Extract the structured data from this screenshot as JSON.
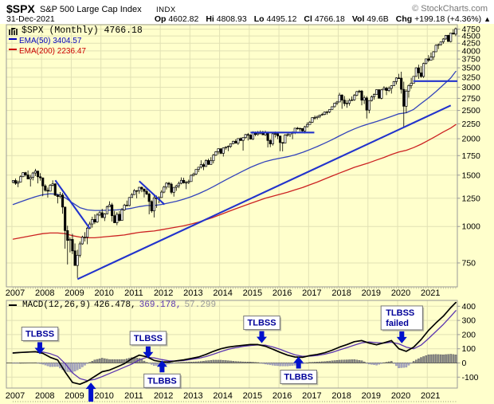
{
  "header": {
    "symbol": "$SPX",
    "name": "S&P 500 Large Cap Index",
    "exchange": "INDX",
    "copyright": "© StockCharts.com"
  },
  "quote": {
    "date": "31-Dec-2021",
    "op_label": "Op",
    "op": "4602.82",
    "hi_label": "Hi",
    "hi": "4808.93",
    "lo_label": "Lo",
    "lo": "4495.12",
    "cl_label": "Cl",
    "cl": "4766.18",
    "vol_label": "Vol",
    "vol": "49.6B",
    "chg_label": "Chg",
    "chg": "+199.18 (+4.36%)",
    "chg_dir": "▲"
  },
  "legend": {
    "main": "$SPX (Monthly) 4766.18",
    "ema50": "EMA(50) 3404.57",
    "ema200": "EMA(200) 2236.47"
  },
  "macd_legend": {
    "label": "MACD(12,26,9)",
    "value_macd": "426.478,",
    "value_signal": "369.178,",
    "value_hist": "57.299"
  },
  "colors": {
    "background": "#FFFFCC",
    "grid": "#E1E1B4",
    "frame": "#999999",
    "candle": "#000000",
    "candle_up_fill": "#FFFFFF",
    "ema50": "#3344BB",
    "ema200": "#CC2222",
    "ema50_text": "#0000BB",
    "ema200_text": "#CC0000",
    "trendline": "#2233CC",
    "macd_line": "#000000",
    "signal_line": "#5B35B0",
    "hist_pos": "#8A8A8A",
    "hist_neg": "#A9A9C2",
    "hist_pos_edge": "#555555",
    "hist_neg_edge": "#8585A8",
    "annotation_text": "#000099",
    "arrow": "#0011CC",
    "gray_value": "#999999"
  },
  "chart_data": {
    "price_panel": {
      "type": "candlestick",
      "y_scale": "log",
      "y_ticks": [
        750,
        1000,
        1250,
        1500,
        1750,
        2000,
        2250,
        2500,
        2750,
        3000,
        3250,
        3500,
        3750,
        4000,
        4250,
        4500,
        4750
      ],
      "x_years": [
        2007,
        2008,
        2009,
        2010,
        2011,
        2012,
        2013,
        2014,
        2015,
        2016,
        2017,
        2018,
        2019,
        2020,
        2021
      ],
      "x_start_year": 2007,
      "months": 180,
      "first_open": 1418,
      "monthly_hlc": [
        [
          1441,
          1404,
          1438
        ],
        [
          1461,
          1389,
          1406
        ],
        [
          1438,
          1364,
          1420
        ],
        [
          1498,
          1416,
          1482
        ],
        [
          1535,
          1476,
          1530
        ],
        [
          1540,
          1484,
          1503
        ],
        [
          1556,
          1455,
          1455
        ],
        [
          1504,
          1371,
          1474
        ],
        [
          1539,
          1439,
          1526
        ],
        [
          1576,
          1489,
          1549
        ],
        [
          1552,
          1406,
          1481
        ],
        [
          1524,
          1436,
          1468
        ],
        [
          1472,
          1270,
          1378
        ],
        [
          1396,
          1316,
          1330
        ],
        [
          1360,
          1257,
          1322
        ],
        [
          1398,
          1324,
          1385
        ],
        [
          1440,
          1373,
          1400
        ],
        [
          1406,
          1272,
          1280
        ],
        [
          1292,
          1200,
          1267
        ],
        [
          1313,
          1247,
          1282
        ],
        [
          1303,
          1106,
          1166
        ],
        [
          1167,
          839,
          968
        ],
        [
          1006,
          741,
          896
        ],
        [
          918,
          815,
          903
        ],
        [
          944,
          804,
          825
        ],
        [
          875,
          735,
          735
        ],
        [
          832,
          666,
          797
        ],
        [
          888,
          783,
          872
        ],
        [
          930,
          866,
          919
        ],
        [
          956,
          888,
          919
        ],
        [
          996,
          869,
          987
        ],
        [
          1039,
          978,
          1020
        ],
        [
          1080,
          991,
          1057
        ],
        [
          1101,
          1019,
          1036
        ],
        [
          1113,
          1029,
          1095
        ],
        [
          1130,
          1085,
          1115
        ],
        [
          1150,
          1071,
          1073
        ],
        [
          1112,
          1044,
          1104
        ],
        [
          1180,
          1116,
          1169
        ],
        [
          1220,
          1170,
          1186
        ],
        [
          1205,
          1040,
          1089
        ],
        [
          1131,
          1028,
          1030
        ],
        [
          1120,
          1010,
          1101
        ],
        [
          1129,
          1039,
          1049
        ],
        [
          1157,
          1049,
          1141
        ],
        [
          1196,
          1131,
          1183
        ],
        [
          1227,
          1173,
          1180
        ],
        [
          1262,
          1173,
          1257
        ],
        [
          1302,
          1257,
          1286
        ],
        [
          1344,
          1289,
          1327
        ],
        [
          1332,
          1249,
          1325
        ],
        [
          1364,
          1294,
          1363
        ],
        [
          1370,
          1311,
          1345
        ],
        [
          1345,
          1258,
          1320
        ],
        [
          1356,
          1282,
          1292
        ],
        [
          1307,
          1101,
          1218
        ],
        [
          1230,
          1114,
          1131
        ],
        [
          1292,
          1074,
          1253
        ],
        [
          1277,
          1158,
          1246
        ],
        [
          1269,
          1202,
          1257
        ],
        [
          1333,
          1258,
          1312
        ],
        [
          1378,
          1300,
          1365
        ],
        [
          1419,
          1340,
          1408
        ],
        [
          1422,
          1357,
          1397
        ],
        [
          1415,
          1291,
          1310
        ],
        [
          1363,
          1266,
          1362
        ],
        [
          1391,
          1325,
          1379
        ],
        [
          1426,
          1354,
          1406
        ],
        [
          1474,
          1396,
          1440
        ],
        [
          1470,
          1403,
          1412
        ],
        [
          1434,
          1343,
          1416
        ],
        [
          1448,
          1398,
          1426
        ],
        [
          1509,
          1426,
          1498
        ],
        [
          1530,
          1485,
          1514
        ],
        [
          1570,
          1501,
          1569
        ],
        [
          1597,
          1536,
          1597
        ],
        [
          1687,
          1581,
          1630
        ],
        [
          1654,
          1560,
          1606
        ],
        [
          1698,
          1604,
          1685
        ],
        [
          1709,
          1627,
          1632
        ],
        [
          1729,
          1633,
          1681
        ],
        [
          1775,
          1646,
          1756
        ],
        [
          1813,
          1746,
          1805
        ],
        [
          1849,
          1767,
          1848
        ],
        [
          1851,
          1770,
          1782
        ],
        [
          1867,
          1737,
          1859
        ],
        [
          1883,
          1834,
          1872
        ],
        [
          1897,
          1814,
          1883
        ],
        [
          1924,
          1859,
          1923
        ],
        [
          1968,
          1915,
          1960
        ],
        [
          1991,
          1930,
          1930
        ],
        [
          2005,
          1904,
          2003
        ],
        [
          2019,
          1964,
          1972
        ],
        [
          2018,
          1820,
          2018
        ],
        [
          2076,
          2001,
          2067
        ],
        [
          2093,
          1972,
          2058
        ],
        [
          2072,
          1988,
          1994
        ],
        [
          2120,
          1980,
          2104
        ],
        [
          2117,
          2040,
          2067
        ],
        [
          2126,
          2048,
          2085
        ],
        [
          2135,
          2067,
          2107
        ],
        [
          2130,
          2056,
          2063
        ],
        [
          2133,
          2044,
          2103
        ],
        [
          2113,
          1867,
          1972
        ],
        [
          1993,
          1871,
          1920
        ],
        [
          2095,
          1894,
          2079
        ],
        [
          2116,
          2019,
          2080
        ],
        [
          2104,
          1993,
          2043
        ],
        [
          2038,
          1812,
          1940
        ],
        [
          1947,
          1810,
          1932
        ],
        [
          2073,
          1932,
          2059
        ],
        [
          2111,
          2033,
          2065
        ],
        [
          2103,
          2026,
          2096
        ],
        [
          2121,
          1992,
          2098
        ],
        [
          2177,
          2074,
          2173
        ],
        [
          2194,
          2148,
          2170
        ],
        [
          2180,
          2119,
          2168
        ],
        [
          2170,
          2114,
          2126
        ],
        [
          2214,
          2084,
          2198
        ],
        [
          2278,
          2187,
          2238
        ],
        [
          2301,
          2239,
          2278
        ],
        [
          2368,
          2267,
          2363
        ],
        [
          2401,
          2322,
          2362
        ],
        [
          2399,
          2329,
          2384
        ],
        [
          2418,
          2353,
          2411
        ],
        [
          2454,
          2405,
          2423
        ],
        [
          2477,
          2408,
          2470
        ],
        [
          2491,
          2418,
          2471
        ],
        [
          2519,
          2447,
          2519
        ],
        [
          2582,
          2520,
          2575
        ],
        [
          2657,
          2558,
          2647
        ],
        [
          2695,
          2606,
          2673
        ],
        [
          2873,
          2674,
          2823
        ],
        [
          2840,
          2533,
          2713
        ],
        [
          2802,
          2586,
          2640
        ],
        [
          2717,
          2554,
          2648
        ],
        [
          2742,
          2595,
          2705
        ],
        [
          2791,
          2692,
          2718
        ],
        [
          2848,
          2699,
          2816
        ],
        [
          2916,
          2796,
          2901
        ],
        [
          2941,
          2865,
          2913
        ],
        [
          2940,
          2603,
          2711
        ],
        [
          2815,
          2631,
          2760
        ],
        [
          2800,
          2346,
          2506
        ],
        [
          2708,
          2444,
          2704
        ],
        [
          2813,
          2682,
          2784
        ],
        [
          2860,
          2722,
          2834
        ],
        [
          2949,
          2848,
          2945
        ],
        [
          2954,
          2750,
          2752
        ],
        [
          2964,
          2729,
          2941
        ],
        [
          3028,
          2952,
          2980
        ],
        [
          3014,
          2822,
          2926
        ],
        [
          3022,
          2891,
          2976
        ],
        [
          3050,
          2856,
          3037
        ],
        [
          3154,
          3037,
          3140
        ],
        [
          3248,
          3070,
          3230
        ],
        [
          3338,
          3214,
          3225
        ],
        [
          3394,
          2856,
          2954
        ],
        [
          3137,
          2192,
          2584
        ],
        [
          2955,
          2448,
          2912
        ],
        [
          3068,
          2766,
          3044
        ],
        [
          3233,
          2966,
          3100
        ],
        [
          3280,
          3101,
          3271
        ],
        [
          3514,
          3271,
          3500
        ],
        [
          3588,
          3209,
          3363
        ],
        [
          3550,
          3234,
          3269
        ],
        [
          3646,
          3233,
          3621
        ],
        [
          3760,
          3594,
          3756
        ],
        [
          3870,
          3663,
          3714
        ],
        [
          3950,
          3714,
          3811
        ],
        [
          3994,
          3723,
          3972
        ],
        [
          4218,
          3992,
          4181
        ],
        [
          4238,
          4057,
          4204
        ],
        [
          4302,
          4167,
          4297
        ],
        [
          4429,
          4233,
          4395
        ],
        [
          4537,
          4368,
          4522
        ],
        [
          4546,
          4306,
          4307
        ],
        [
          4608,
          4278,
          4605
        ],
        [
          4744,
          4560,
          4567
        ],
        [
          4809,
          4495,
          4766
        ]
      ],
      "quarterly_x_start": 2007.0,
      "quarterly_x_step": 0.25,
      "series_end_x": 2021.92,
      "ema50_quarterly": [
        1190,
        1215,
        1240,
        1265,
        1285,
        1295,
        1290,
        1255,
        1205,
        1160,
        1140,
        1135,
        1135,
        1138,
        1140,
        1145,
        1155,
        1170,
        1180,
        1180,
        1190,
        1205,
        1220,
        1240,
        1265,
        1295,
        1330,
        1370,
        1415,
        1460,
        1505,
        1550,
        1595,
        1635,
        1670,
        1695,
        1715,
        1735,
        1760,
        1795,
        1835,
        1880,
        1930,
        1985,
        2045,
        2105,
        2160,
        2210,
        2250,
        2290,
        2335,
        2385,
        2435,
        2455,
        2520,
        2640,
        2760,
        2900,
        3060,
        3230,
        3404.57
      ],
      "ema200_quarterly": [
        905,
        915,
        925,
        935,
        945,
        950,
        950,
        945,
        930,
        920,
        915,
        915,
        920,
        925,
        930,
        935,
        945,
        955,
        960,
        965,
        975,
        985,
        995,
        1005,
        1020,
        1035,
        1055,
        1075,
        1100,
        1125,
        1150,
        1175,
        1200,
        1225,
        1250,
        1270,
        1290,
        1310,
        1335,
        1360,
        1390,
        1420,
        1455,
        1490,
        1525,
        1560,
        1595,
        1625,
        1655,
        1690,
        1725,
        1765,
        1800,
        1825,
        1865,
        1915,
        1975,
        2040,
        2110,
        2175,
        2236.47
      ],
      "trendlines": [
        {
          "name": "down-trendline-2008",
          "x1": 2008.42,
          "p1": 1440,
          "x2": 2009.58,
          "p2": 985
        },
        {
          "name": "down-trendline-2011",
          "x1": 2011.25,
          "p1": 1430,
          "x2": 2012.1,
          "p2": 1190
        },
        {
          "name": "up-trendline-2009-2021",
          "x1": 2009.17,
          "p1": 660,
          "x2": 2021.75,
          "p2": 2600
        },
        {
          "name": "horizontal-line-2100",
          "x1": 2015.0,
          "p1": 2100,
          "x2": 2017.15,
          "p2": 2100
        },
        {
          "name": "horizontal-line-3150",
          "x1": 2020.5,
          "p1": 3150,
          "x2": 2022.1,
          "p2": 3150
        }
      ]
    },
    "macd_panel": {
      "type": "line+histogram",
      "y_ticks": [
        -100,
        0,
        100,
        200,
        300,
        400
      ],
      "x_start": 2007.0,
      "x_step": 0.25,
      "series_end_x": 2021.92,
      "macd": [
        70,
        74,
        77,
        80,
        68,
        40,
        21,
        -63,
        -137,
        -150,
        -128,
        -95,
        -62,
        -50,
        -28,
        -5,
        30,
        55,
        44,
        18,
        8,
        7,
        15,
        22,
        32,
        42,
        60,
        82,
        100,
        112,
        119,
        125,
        130,
        130,
        118,
        97,
        75,
        55,
        42,
        40,
        52,
        60,
        72,
        90,
        112,
        130,
        150,
        158,
        140,
        128,
        142,
        158,
        100,
        82,
        112,
        165,
        230,
        282,
        330,
        390,
        426.478
      ],
      "signal": [
        72,
        74,
        76,
        78,
        77,
        66,
        46,
        -4,
        -70,
        -110,
        -124,
        -116,
        -96,
        -74,
        -52,
        -30,
        -8,
        22,
        40,
        36,
        24,
        15,
        13,
        17,
        25,
        33,
        45,
        62,
        80,
        96,
        108,
        117,
        123,
        127,
        126,
        113,
        96,
        76,
        58,
        47,
        48,
        53,
        62,
        75,
        92,
        108,
        126,
        142,
        148,
        143,
        140,
        146,
        135,
        112,
        100,
        126,
        172,
        222,
        272,
        328,
        369.178
      ],
      "annotations": [
        {
          "label": "TLBSS",
          "year": 2007.9,
          "dir": "down",
          "tip": 62
        },
        {
          "label": "TLBSS",
          "year": 2011.55,
          "dir": "down",
          "tip": 32
        },
        {
          "label": "TLBBS",
          "year": 2012.02,
          "dir": "up",
          "tip": 18
        },
        {
          "label": "",
          "year": 2009.62,
          "dir": "up",
          "tip": -138,
          "stem": 16
        },
        {
          "label": "TLBSS",
          "year": 2015.38,
          "dir": "down",
          "tip": 140
        },
        {
          "label": "TLBBS",
          "year": 2016.62,
          "dir": "up",
          "tip": 45
        },
        {
          "label": "TLBSS",
          "label2": "failed",
          "year": 2020.1,
          "dir": "down",
          "tip": 138
        }
      ]
    }
  }
}
